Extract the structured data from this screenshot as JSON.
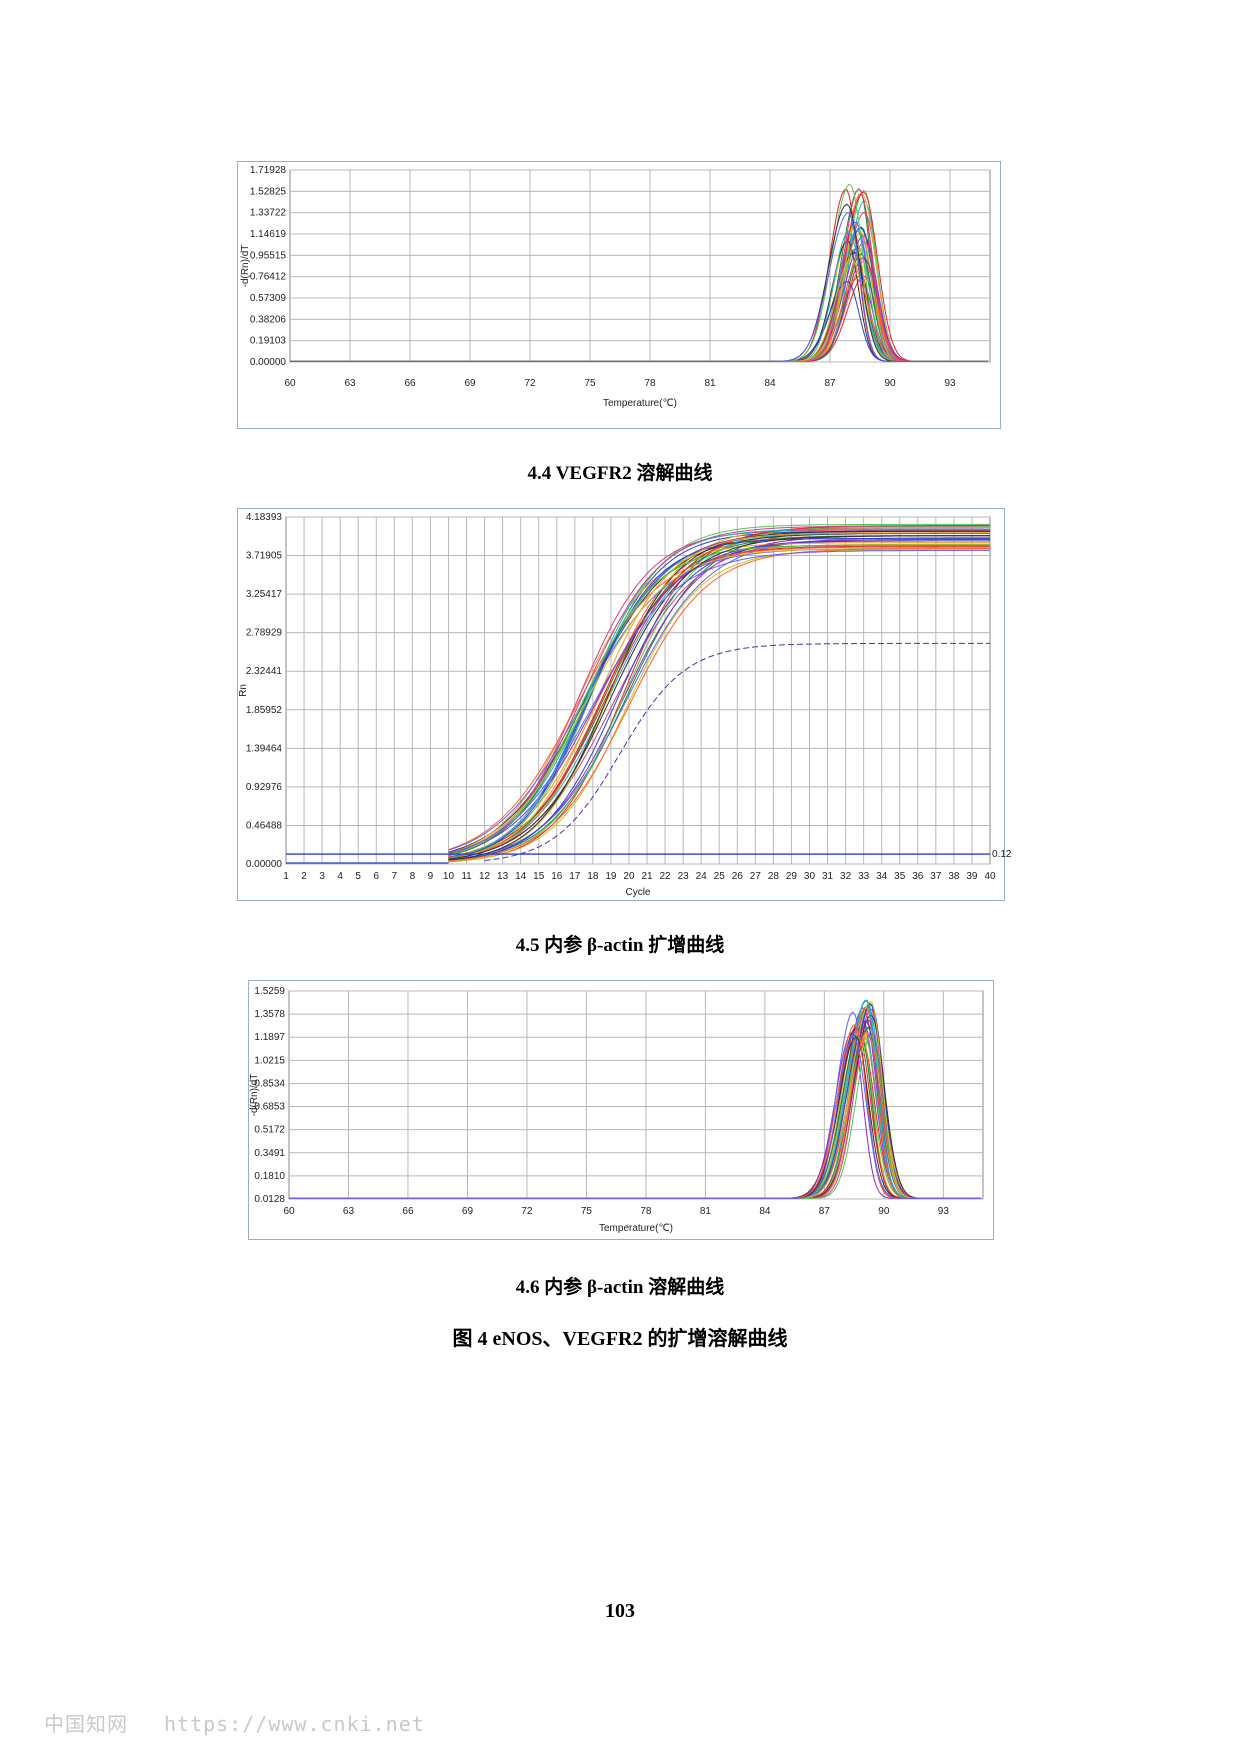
{
  "chart_data": [
    {
      "type": "line",
      "ylabel": "-d(Rn)/dT",
      "xlabel": "Temperature(℃)",
      "yticks": [
        "0.00000",
        "0.19103",
        "0.38206",
        "0.57309",
        "0.76412",
        "0.95515",
        "1.14619",
        "1.33722",
        "1.52825",
        "1.71928"
      ],
      "xticks": [
        "60",
        "63",
        "66",
        "69",
        "72",
        "75",
        "78",
        "81",
        "84",
        "87",
        "90",
        "93"
      ],
      "xlim": [
        60,
        95
      ],
      "ylim": [
        0,
        1.71928
      ],
      "grid": true,
      "peak": {
        "temperature": 88.3,
        "height_range": [
          0.72,
          1.62
        ]
      },
      "series_count": 36,
      "colors": [
        "#e8202a",
        "#1a8a2a",
        "#2a3fd0",
        "#f0a020",
        "#8a2ac0",
        "#20b0c8",
        "#d04090",
        "#50c850",
        "#d0c020",
        "#303030",
        "#ff6030",
        "#6060ff"
      ]
    },
    {
      "type": "line",
      "ylabel": "Rn",
      "xlabel": "Cycle",
      "yticks": [
        "0.00000",
        "0.46488",
        "0.92976",
        "1.39464",
        "1.85952",
        "2.32441",
        "2.78929",
        "3.25417",
        "3.71905",
        "4.18393"
      ],
      "xticks": [
        "1",
        "2",
        "3",
        "4",
        "5",
        "6",
        "7",
        "8",
        "9",
        "10",
        "11",
        "12",
        "13",
        "14",
        "15",
        "16",
        "17",
        "18",
        "19",
        "20",
        "21",
        "22",
        "23",
        "24",
        "25",
        "26",
        "27",
        "28",
        "29",
        "30",
        "31",
        "32",
        "33",
        "34",
        "35",
        "36",
        "37",
        "38",
        "39",
        "40"
      ],
      "xlim": [
        1,
        40
      ],
      "ylim": [
        0,
        4.18393
      ],
      "grid": true,
      "threshold": 0.12,
      "threshold_label": "0.12",
      "plateau_range": [
        3.78,
        4.1
      ],
      "outlier_plateau": 2.66,
      "midpoint_cycle_range": [
        17,
        20
      ],
      "series_count": 36,
      "colors": [
        "#e8202a",
        "#1a8a2a",
        "#2a3fd0",
        "#f0a020",
        "#8a2ac0",
        "#20b0c8",
        "#d04090",
        "#50c850",
        "#d0c020",
        "#303030",
        "#ff6030",
        "#6060ff"
      ]
    },
    {
      "type": "line",
      "ylabel": "-d(Rn)/dT",
      "xlabel": "Temperature(℃)",
      "yticks": [
        "0.0128",
        "0.1810",
        "0.3491",
        "0.5172",
        "0.6853",
        "0.8534",
        "1.0215",
        "1.1897",
        "1.3578",
        "1.5259"
      ],
      "xticks": [
        "60",
        "63",
        "66",
        "69",
        "72",
        "75",
        "78",
        "81",
        "84",
        "87",
        "90",
        "93"
      ],
      "xlim": [
        60,
        95
      ],
      "ylim": [
        0.0128,
        1.7
      ],
      "grid": true,
      "peak": {
        "temperature": 88.9,
        "height_range": [
          1.32,
          1.66
        ]
      },
      "series_count": 36,
      "colors": [
        "#e8202a",
        "#1a8a2a",
        "#2a3fd0",
        "#f0a020",
        "#8a2ac0",
        "#20b0c8",
        "#d04090",
        "#50c850",
        "#d0c020",
        "#303030",
        "#ff6030",
        "#6060ff"
      ]
    }
  ],
  "captions": {
    "c1": "4.4 VEGFR2 溶解曲线",
    "c2": "4.5  内参 β-actin 扩增曲线",
    "c3": "4.6  内参 β-actin 溶解曲线",
    "figure": "图 4    eNOS、VEGFR2 的扩增溶解曲线"
  },
  "page_number": "103",
  "watermark": {
    "brand": "中国知网",
    "url": "https://www.cnki.net"
  }
}
